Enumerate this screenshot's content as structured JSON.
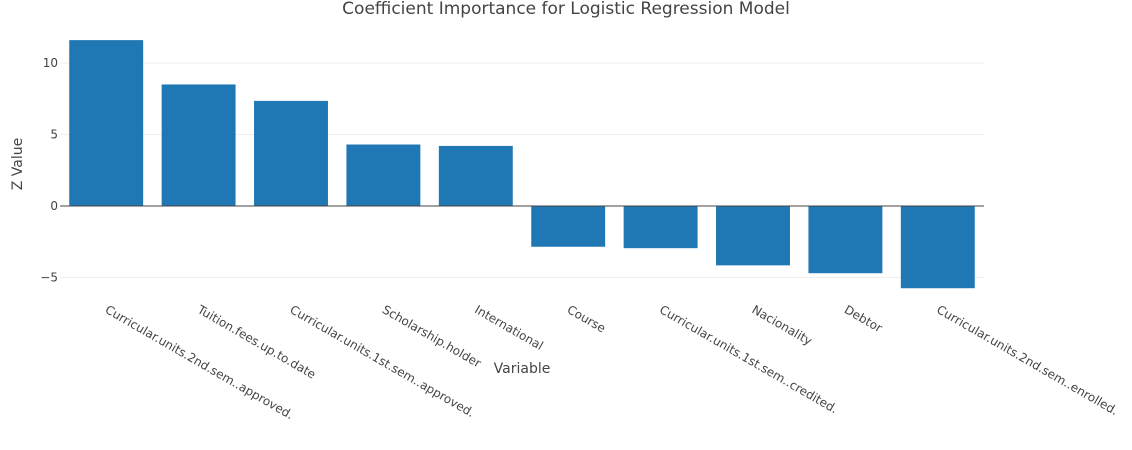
{
  "chart_data": {
    "type": "bar",
    "title": "Coefficient Importance for Logistic Regression Model",
    "xlabel": "Variable",
    "ylabel": "Z Value",
    "categories": [
      "Curricular.units.2nd.sem..approved.",
      "Tuition.fees.up.to.date",
      "Curricular.units.1st.sem..approved.",
      "Scholarship.holder",
      "International",
      "Course",
      "Curricular.units.1st.sem..credited.",
      "Nacionality",
      "Debtor",
      "Curricular.units.2nd.sem..enrolled."
    ],
    "values": [
      11.6,
      8.5,
      7.35,
      4.3,
      4.2,
      -2.85,
      -2.95,
      -4.15,
      -4.7,
      -5.75
    ],
    "ylim": [
      -6.2,
      12.0
    ],
    "yticks": [
      -5,
      0,
      5,
      10
    ],
    "ytick_labels": [
      "−5",
      "0",
      "5",
      "10"
    ],
    "grid": true,
    "bar_color": "#1f77b4"
  }
}
